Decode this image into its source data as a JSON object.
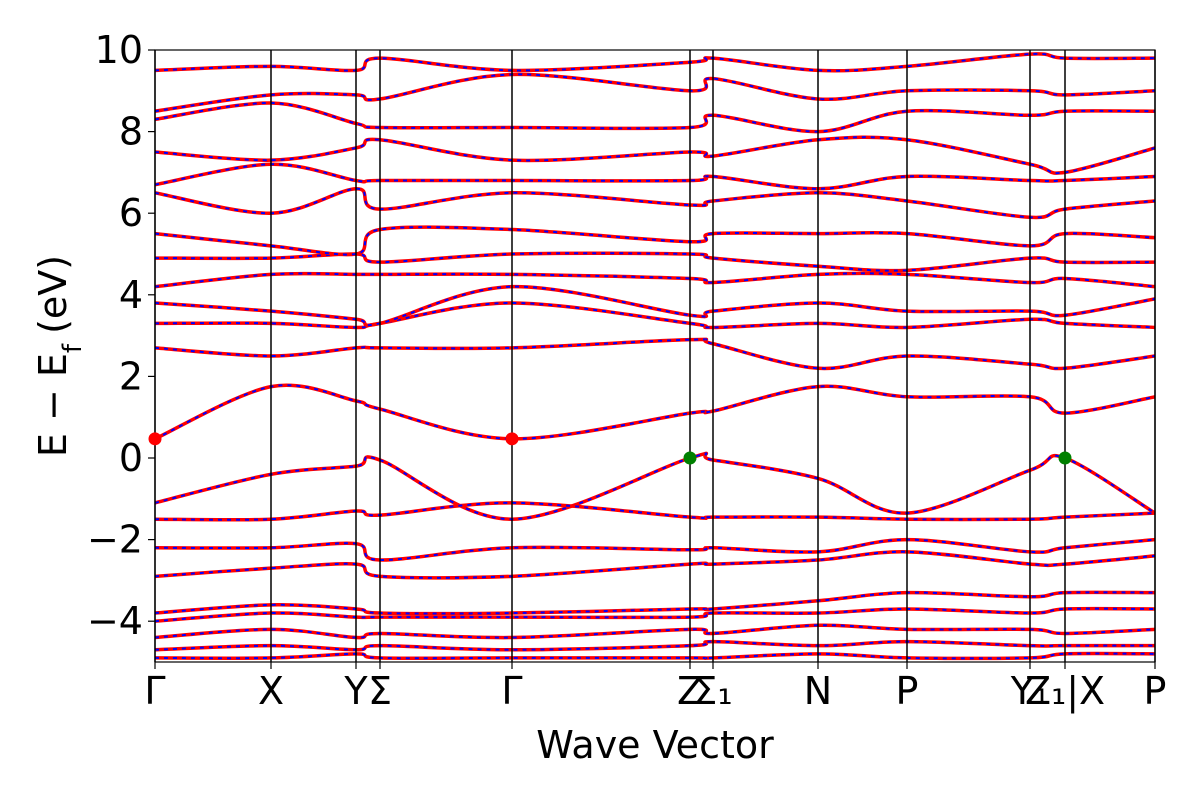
{
  "chart_data": {
    "type": "line",
    "xlabel": "Wave Vector",
    "ylabel": "E − E",
    "ylabel_sub": "f",
    "ylabel_unit": "(eV)",
    "xlim": [
      0,
      1000
    ],
    "ylim": [
      -5,
      10
    ],
    "yticks": [
      {
        "value": -4,
        "label": "−4"
      },
      {
        "value": -2,
        "label": "−2"
      },
      0,
      2,
      4,
      6,
      8,
      10
    ],
    "xticks": [
      {
        "value": 0,
        "label": "Γ"
      },
      {
        "value": 116,
        "label": "X"
      },
      {
        "value": 201,
        "label": "Y"
      },
      {
        "value": 225,
        "label": "Σ"
      },
      {
        "value": 357,
        "label": "Γ"
      },
      {
        "value": 535,
        "label": "Z"
      },
      {
        "value": 558,
        "label": "Σ₁"
      },
      {
        "value": 663,
        "label": "N"
      },
      {
        "value": 752,
        "label": "P"
      },
      {
        "value": 875,
        "label": "Y₁"
      },
      {
        "value": 910,
        "label": "Z₁|X"
      },
      {
        "value": 1000,
        "label": "P"
      }
    ],
    "line_color": "#ff0000",
    "dash_color": "#0000ff",
    "x": [
      0,
      116,
      201,
      225,
      357,
      535,
      558,
      663,
      752,
      875,
      910,
      1000
    ],
    "series": [
      {
        "values": [
          0.47,
          1.75,
          1.4,
          1.2,
          0.47,
          1.1,
          1.15,
          1.75,
          1.5,
          1.5,
          1.1,
          1.5
        ]
      },
      {
        "values": [
          -1.1,
          -0.4,
          -0.2,
          -0.05,
          -1.5,
          0,
          -0.05,
          -0.5,
          -1.35,
          -0.3,
          0,
          -1.35
        ]
      },
      {
        "values": [
          -1.5,
          -1.5,
          -1.3,
          -1.4,
          -1.1,
          -1.45,
          -1.45,
          -1.45,
          -1.5,
          -1.5,
          -1.45,
          -1.35
        ]
      },
      {
        "values": [
          -2.2,
          -2.2,
          -2.1,
          -2.5,
          -2.2,
          -2.25,
          -2.2,
          -2.3,
          -2.0,
          -2.3,
          -2.2,
          -2.0
        ]
      },
      {
        "values": [
          -2.9,
          -2.7,
          -2.6,
          -2.9,
          -2.9,
          -2.6,
          -2.6,
          -2.5,
          -2.3,
          -2.6,
          -2.6,
          -2.4
        ]
      },
      {
        "values": [
          -3.8,
          -3.6,
          -3.7,
          -3.8,
          -3.8,
          -3.7,
          -3.7,
          -3.5,
          -3.3,
          -3.4,
          -3.3,
          -3.3
        ]
      },
      {
        "values": [
          -4.0,
          -3.8,
          -3.9,
          -3.9,
          -3.9,
          -3.9,
          -3.8,
          -3.8,
          -3.7,
          -3.8,
          -3.7,
          -3.7
        ]
      },
      {
        "values": [
          -4.4,
          -4.2,
          -4.4,
          -4.3,
          -4.4,
          -4.2,
          -4.3,
          -4.1,
          -4.2,
          -4.2,
          -4.3,
          -4.2
        ]
      },
      {
        "values": [
          -4.7,
          -4.6,
          -4.7,
          -4.6,
          -4.7,
          -4.6,
          -4.5,
          -4.6,
          -4.5,
          -4.6,
          -4.6,
          -4.6
        ]
      },
      {
        "values": [
          -4.9,
          -4.9,
          -4.8,
          -4.9,
          -4.9,
          -4.9,
          -4.9,
          -4.8,
          -4.9,
          -4.9,
          -4.8,
          -4.8
        ]
      },
      {
        "values": [
          2.7,
          2.5,
          2.7,
          2.7,
          2.7,
          2.9,
          2.8,
          2.2,
          2.5,
          2.3,
          2.2,
          2.5
        ]
      },
      {
        "values": [
          3.3,
          3.3,
          3.2,
          3.3,
          3.8,
          3.3,
          3.2,
          3.3,
          3.2,
          3.4,
          3.3,
          3.2
        ]
      },
      {
        "values": [
          3.8,
          3.6,
          3.4,
          3.3,
          4.2,
          3.5,
          3.6,
          3.8,
          3.6,
          3.6,
          3.5,
          3.9
        ]
      },
      {
        "values": [
          4.2,
          4.5,
          4.5,
          4.5,
          4.5,
          4.4,
          4.3,
          4.5,
          4.5,
          4.3,
          4.4,
          4.2
        ]
      },
      {
        "values": [
          4.9,
          4.9,
          5.0,
          4.8,
          5.0,
          5.0,
          4.9,
          4.7,
          4.6,
          4.9,
          4.8,
          4.8
        ]
      },
      {
        "values": [
          5.5,
          5.2,
          5.0,
          5.6,
          5.6,
          5.3,
          5.5,
          5.5,
          5.5,
          5.2,
          5.5,
          5.4
        ]
      },
      {
        "values": [
          6.5,
          6.0,
          6.6,
          6.1,
          6.5,
          6.2,
          6.3,
          6.5,
          6.3,
          5.9,
          6.1,
          6.3
        ]
      },
      {
        "values": [
          6.7,
          7.2,
          6.8,
          6.8,
          6.8,
          6.8,
          6.9,
          6.6,
          6.9,
          6.8,
          6.8,
          6.9
        ]
      },
      {
        "values": [
          7.5,
          7.3,
          7.6,
          7.8,
          7.3,
          7.5,
          7.4,
          7.8,
          7.8,
          7.2,
          7.0,
          7.6
        ]
      },
      {
        "values": [
          8.3,
          8.7,
          8.2,
          8.1,
          8.1,
          8.1,
          8.4,
          8.0,
          8.5,
          8.4,
          8.5,
          8.5
        ]
      },
      {
        "values": [
          8.5,
          8.9,
          8.9,
          8.8,
          9.4,
          9.0,
          9.3,
          8.8,
          9.0,
          9.0,
          8.9,
          9.0
        ]
      },
      {
        "values": [
          9.5,
          9.6,
          9.5,
          9.8,
          9.5,
          9.7,
          9.8,
          9.5,
          9.6,
          9.9,
          9.8,
          9.8
        ]
      }
    ],
    "points": [
      {
        "x": 0,
        "y": 0.47,
        "color": "#ff0000"
      },
      {
        "x": 357,
        "y": 0.47,
        "color": "#ff0000"
      },
      {
        "x": 535,
        "y": 0,
        "color": "#008000"
      },
      {
        "x": 910,
        "y": 0,
        "color": "#008000"
      }
    ]
  }
}
